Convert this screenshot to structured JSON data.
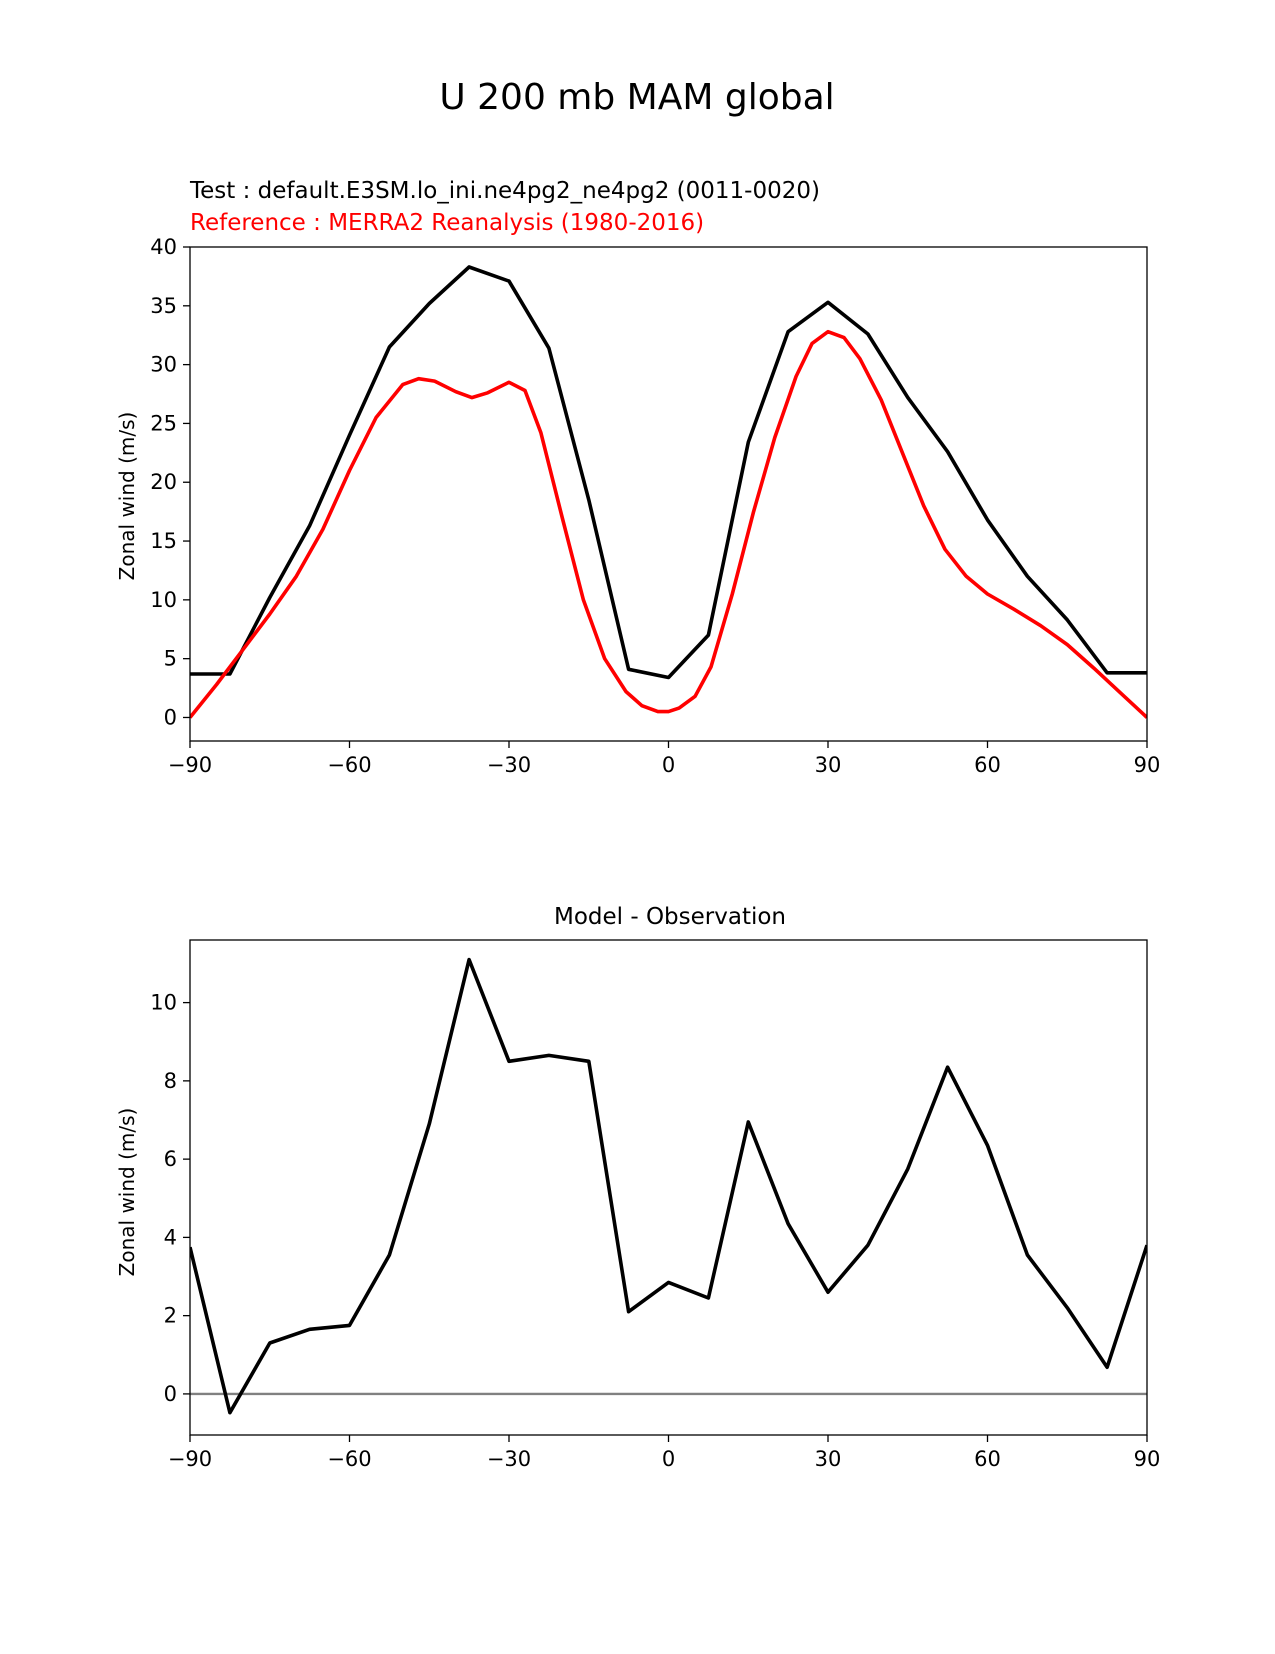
{
  "figure": {
    "title": "U 200 mb MAM global"
  },
  "chart_data": [
    {
      "type": "line",
      "title_left_lines": [
        {
          "text": "Test : default.E3SM.lo_ini.ne4pg2_ne4pg2 (0011-0020)",
          "color": "#000000"
        },
        {
          "text": "Reference : MERRA2 Reanalysis (1980-2016)",
          "color": "#ff0000"
        }
      ],
      "xlabel": "",
      "ylabel": "Zonal wind (m/s)",
      "xlim": [
        -90,
        90
      ],
      "ylim": [
        -2,
        40
      ],
      "xticks": [
        -90,
        -60,
        -30,
        0,
        30,
        60,
        90
      ],
      "xtick_labels": [
        "−90",
        "−60",
        "−30",
        "0",
        "30",
        "60",
        "90"
      ],
      "yticks": [
        0,
        5,
        10,
        15,
        20,
        25,
        30,
        35,
        40
      ],
      "ytick_labels": [
        "0",
        "5",
        "10",
        "15",
        "20",
        "25",
        "30",
        "35",
        "40"
      ],
      "grid": false,
      "series": [
        {
          "role": "test",
          "color": "#000000",
          "x": [
            -90,
            -82.5,
            -75,
            -67.5,
            -60,
            -52.5,
            -45,
            -37.5,
            -30,
            -22.5,
            -15,
            -7.5,
            0,
            7.5,
            15,
            22.5,
            30,
            37.5,
            45,
            52.5,
            60,
            67.5,
            75,
            82.5,
            90
          ],
          "y": [
            3.7,
            3.7,
            10.2,
            16.3,
            24.0,
            31.5,
            35.2,
            38.3,
            37.1,
            31.4,
            18.5,
            4.1,
            3.4,
            7.0,
            23.4,
            32.8,
            35.3,
            32.6,
            27.2,
            22.6,
            16.8,
            12.0,
            8.3,
            3.8,
            3.8
          ]
        },
        {
          "role": "reference",
          "color": "#ff0000",
          "x": [
            -90,
            -85,
            -80,
            -75,
            -70,
            -65,
            -60,
            -55,
            -50,
            -47,
            -44,
            -40,
            -37,
            -34,
            -30,
            -27,
            -24,
            -20,
            -16,
            -12,
            -8,
            -5,
            -2,
            0,
            2,
            5,
            8,
            12,
            16,
            20,
            24,
            27,
            30,
            33,
            36,
            40,
            44,
            48,
            52,
            56,
            60,
            65,
            70,
            75,
            80,
            85,
            90
          ],
          "y": [
            0,
            2.8,
            5.8,
            8.8,
            12.0,
            16.0,
            21.0,
            25.5,
            28.3,
            28.8,
            28.6,
            27.7,
            27.2,
            27.6,
            28.5,
            27.8,
            24.2,
            17.0,
            10.0,
            5.0,
            2.2,
            1.0,
            0.5,
            0.5,
            0.8,
            1.8,
            4.3,
            10.5,
            17.5,
            23.8,
            29.0,
            31.8,
            32.8,
            32.3,
            30.5,
            27.0,
            22.5,
            18.0,
            14.3,
            12.0,
            10.5,
            9.2,
            7.8,
            6.2,
            4.2,
            2.1,
            0
          ]
        }
      ]
    },
    {
      "type": "line",
      "title": "Model - Observation",
      "xlabel": "",
      "ylabel": "Zonal wind (m/s)",
      "xlim": [
        -90,
        90
      ],
      "ylim": [
        -1.05,
        11.6
      ],
      "xticks": [
        -90,
        -60,
        -30,
        0,
        30,
        60,
        90
      ],
      "xtick_labels": [
        "−90",
        "−60",
        "−30",
        "0",
        "30",
        "60",
        "90"
      ],
      "yticks": [
        0,
        2,
        4,
        6,
        8,
        10
      ],
      "ytick_labels": [
        "0",
        "2",
        "4",
        "6",
        "8",
        "10"
      ],
      "grid": false,
      "hline": {
        "y": 0,
        "color": "#808080"
      },
      "series": [
        {
          "role": "difference",
          "color": "#000000",
          "x": [
            -90,
            -82.5,
            -75,
            -67.5,
            -60,
            -52.5,
            -45,
            -37.5,
            -30,
            -22.5,
            -15,
            -7.5,
            0,
            7.5,
            15,
            22.5,
            30,
            37.5,
            45,
            52.5,
            60,
            67.5,
            75,
            82.5,
            90
          ],
          "y": [
            3.75,
            -0.48,
            1.3,
            1.65,
            1.75,
            3.55,
            6.9,
            11.1,
            8.5,
            8.65,
            8.5,
            2.1,
            2.85,
            2.45,
            6.95,
            4.35,
            2.6,
            3.8,
            5.75,
            8.35,
            6.35,
            3.55,
            2.2,
            0.68,
            3.8
          ]
        }
      ]
    }
  ]
}
